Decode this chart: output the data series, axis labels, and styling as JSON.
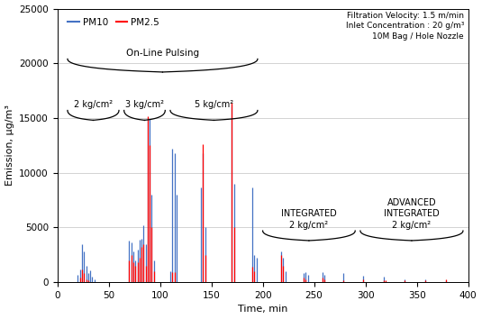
{
  "xlabel": "Time, min",
  "ylabel": "Emission, μg/m³",
  "xlim": [
    0,
    400
  ],
  "ylim": [
    0,
    25000
  ],
  "yticks": [
    0,
    5000,
    10000,
    15000,
    20000,
    25000
  ],
  "xticks": [
    0,
    50,
    100,
    150,
    200,
    250,
    300,
    350,
    400
  ],
  "color_pm10": "#4472C4",
  "color_pm25": "#FF0000",
  "annotation_text": "Filtration Velocity: 1.5 m/min\nInlet Concentration : 20 g/m³\n10M Bag / Hole Nozzle",
  "pm10_spikes": [
    [
      20,
      700
    ],
    [
      22,
      1200
    ],
    [
      24,
      3500
    ],
    [
      26,
      2800
    ],
    [
      28,
      1500
    ],
    [
      30,
      800
    ],
    [
      32,
      1100
    ],
    [
      34,
      500
    ],
    [
      36,
      300
    ],
    [
      70,
      3800
    ],
    [
      72,
      3600
    ],
    [
      74,
      2800
    ],
    [
      76,
      2000
    ],
    [
      78,
      3000
    ],
    [
      80,
      3900
    ],
    [
      82,
      4000
    ],
    [
      84,
      5200
    ],
    [
      86,
      3500
    ],
    [
      88,
      15000
    ],
    [
      90,
      14900
    ],
    [
      92,
      8000
    ],
    [
      94,
      2000
    ],
    [
      110,
      1000
    ],
    [
      112,
      12200
    ],
    [
      114,
      11800
    ],
    [
      116,
      8000
    ],
    [
      140,
      8700
    ],
    [
      142,
      11800
    ],
    [
      144,
      5000
    ],
    [
      170,
      16200
    ],
    [
      172,
      9000
    ],
    [
      190,
      8700
    ],
    [
      192,
      2500
    ],
    [
      194,
      2200
    ],
    [
      218,
      2800
    ],
    [
      220,
      2200
    ],
    [
      222,
      1000
    ],
    [
      240,
      800
    ],
    [
      242,
      900
    ],
    [
      244,
      700
    ],
    [
      258,
      900
    ],
    [
      260,
      700
    ],
    [
      278,
      800
    ],
    [
      298,
      600
    ],
    [
      318,
      500
    ],
    [
      338,
      300
    ],
    [
      358,
      300
    ],
    [
      378,
      200
    ]
  ],
  "pm25_spikes": [
    [
      22,
      400
    ],
    [
      24,
      1200
    ],
    [
      26,
      800
    ],
    [
      28,
      300
    ],
    [
      30,
      200
    ],
    [
      70,
      2000
    ],
    [
      72,
      2500
    ],
    [
      74,
      1800
    ],
    [
      76,
      1500
    ],
    [
      78,
      1800
    ],
    [
      80,
      2200
    ],
    [
      82,
      3200
    ],
    [
      84,
      3500
    ],
    [
      86,
      1500
    ],
    [
      88,
      15200
    ],
    [
      90,
      12500
    ],
    [
      92,
      5000
    ],
    [
      94,
      1000
    ],
    [
      112,
      900
    ],
    [
      114,
      900
    ],
    [
      142,
      12600
    ],
    [
      144,
      2500
    ],
    [
      170,
      16400
    ],
    [
      172,
      5000
    ],
    [
      190,
      1400
    ],
    [
      192,
      1000
    ],
    [
      218,
      2500
    ],
    [
      220,
      1500
    ],
    [
      240,
      400
    ],
    [
      242,
      300
    ],
    [
      258,
      400
    ],
    [
      260,
      300
    ],
    [
      278,
      200
    ],
    [
      298,
      300
    ],
    [
      318,
      200
    ],
    [
      320,
      150
    ],
    [
      338,
      150
    ],
    [
      358,
      200
    ],
    [
      378,
      300
    ]
  ]
}
